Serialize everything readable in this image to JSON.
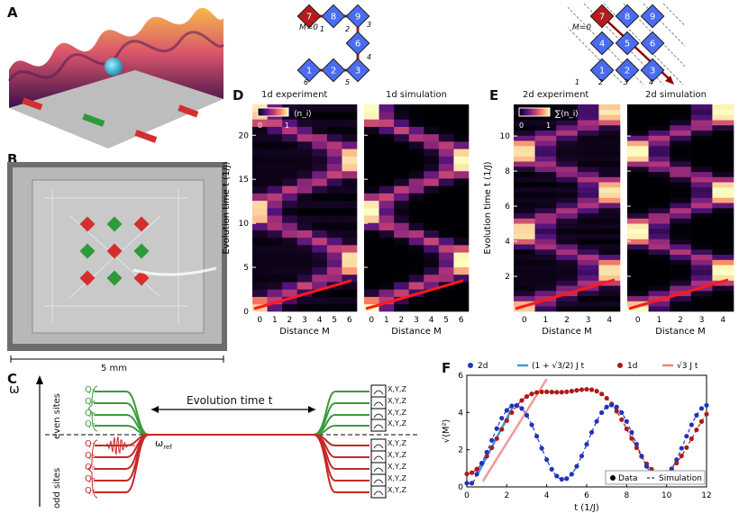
{
  "panels": {
    "a": "A",
    "b": "B",
    "c": "C",
    "d": "D",
    "e": "E",
    "f": "F"
  },
  "b": {
    "scale": "5 mm"
  },
  "c": {
    "omega": "ω",
    "even_label": "even sites",
    "odd_label": "odd sites",
    "even_qubits": [
      "Q₂",
      "Q₄",
      "Q₈",
      "Q₆"
    ],
    "odd_qubits": [
      "Q₇",
      "Q₁",
      "Q₉",
      "Q₃",
      "Q₅"
    ],
    "evolution": "Evolution time t",
    "omega_ref": "ω",
    "omega_ref_sub": "ref",
    "readout": "X,Y,Z"
  },
  "lattice1d": {
    "m0": "M=0",
    "nodes": [
      "7",
      "8",
      "9",
      "6",
      "1",
      "2",
      "3"
    ],
    "nums": [
      "1",
      "2",
      "3",
      "4",
      "5",
      "6"
    ]
  },
  "lattice2d": {
    "m0": "M=0",
    "nodes": [
      "7",
      "8",
      "9",
      "4",
      "5",
      "6",
      "1",
      "2",
      "3"
    ],
    "nums": [
      "1",
      "2",
      "3",
      "4"
    ]
  },
  "d": {
    "title_left": "1d experiment",
    "title_right": "1d simulation",
    "ylabel": "Evolution time  t  (1/J)",
    "xlabel": "Distance M",
    "yticks": [
      "0",
      "5",
      "10",
      "15",
      "20"
    ],
    "xticks": [
      "0",
      "1",
      "2",
      "3",
      "4",
      "5",
      "6"
    ],
    "cbar_min": "0",
    "cbar_max": "1",
    "cbar_label": "⟨n_i⟩"
  },
  "e": {
    "title_left": "2d experiment",
    "title_right": "2d simulation",
    "ylabel": "Evolution time  t  (1/J)",
    "xlabel": "Distance M",
    "yticks": [
      "2",
      "4",
      "6",
      "8",
      "10"
    ],
    "xticks": [
      "0",
      "1",
      "2",
      "3",
      "4"
    ],
    "cbar_min": "0",
    "cbar_max": "1",
    "cbar_label": "∑⟨n_i⟩"
  },
  "f": {
    "ylabel": "√⟨M²⟩",
    "xlabel": "t (1/J)",
    "legend": [
      "2d",
      "(1 + √3/2) J t",
      "1d",
      "√3 J t"
    ],
    "legend2": [
      "Data",
      "Simulation"
    ],
    "xticks": [
      "0",
      "2",
      "4",
      "6",
      "8",
      "10",
      "12"
    ],
    "yticks": [
      "0",
      "2",
      "4",
      "6"
    ]
  },
  "colors": {
    "red": "#c62828",
    "green": "#3a9a3a",
    "blue_node": "#4a6cf0",
    "dark_red_node": "#b71c1c",
    "series_2d": "#2233bb",
    "series_1d": "#b01818",
    "fit_2d": "#3a9be0",
    "fit_1d": "#f08080"
  }
}
